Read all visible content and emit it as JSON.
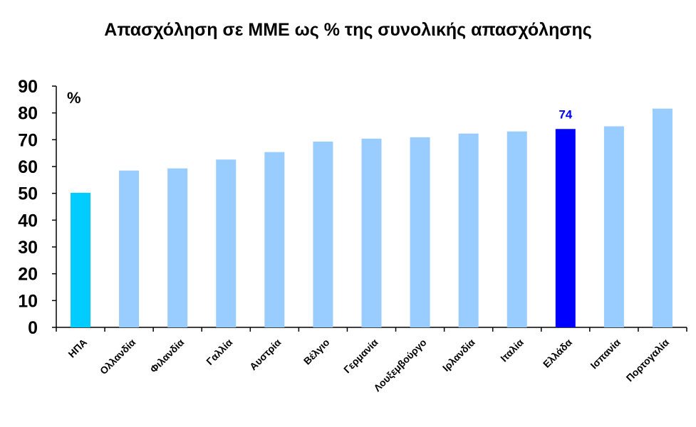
{
  "chart_data": {
    "type": "bar",
    "title": "Απασχόληση σε ΜΜΕ ως % της συνολικής απασχόλησης",
    "unit_label": "%",
    "categories": [
      "ΗΠΑ",
      "Ολλανδία",
      "Φιλανδία",
      "Γαλλία",
      "Αυστρία",
      "Βέλγιο",
      "Γερμανία",
      "Λουξεμβούργο",
      "Ιρλανδία",
      "Ιταλία",
      "Ελλάδα",
      "Ισπανία",
      "Πορτογαλία"
    ],
    "values": [
      50.2,
      58.5,
      59.3,
      62.6,
      65.4,
      69.3,
      70.4,
      70.9,
      72.3,
      73.1,
      74,
      75,
      81.6
    ],
    "bar_colors": [
      "#00CCFF",
      "#99CCFF",
      "#99CCFF",
      "#99CCFF",
      "#99CCFF",
      "#99CCFF",
      "#99CCFF",
      "#99CCFF",
      "#99CCFF",
      "#99CCFF",
      "#0000FF",
      "#99CCFF",
      "#99CCFF"
    ],
    "data_labels": [
      {
        "category": "Ελλάδα",
        "text": "74",
        "color": "#0000FF"
      }
    ],
    "ylim": [
      0,
      90
    ],
    "yticks": [
      "0",
      "10",
      "20",
      "30",
      "40",
      "50",
      "60",
      "70",
      "80",
      "90"
    ],
    "xlabel": "",
    "ylabel": "",
    "grid": false,
    "legend": "none"
  }
}
